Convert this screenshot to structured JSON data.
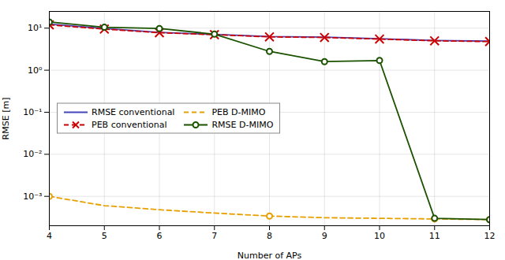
{
  "chart_data": {
    "type": "line",
    "xlabel": "Number of APs",
    "ylabel": "RMSE [m]",
    "x": [
      4,
      5,
      6,
      7,
      8,
      9,
      10,
      11,
      12
    ],
    "xlim": [
      4,
      12
    ],
    "xticks": [
      4,
      5,
      6,
      7,
      8,
      9,
      10,
      11,
      12
    ],
    "ylim": [
      0.0002,
      25
    ],
    "yticks": [
      {
        "value": 0.001,
        "label": "10⁻³"
      },
      {
        "value": 0.01,
        "label": "10⁻²"
      },
      {
        "value": 0.1,
        "label": "10⁻¹"
      },
      {
        "value": 1,
        "label": "10⁰"
      },
      {
        "value": 10,
        "label": "10¹"
      }
    ],
    "log": "y",
    "grid": true,
    "legend": "center left",
    "series": [
      {
        "name": "RMSE conventional",
        "color": "#4444bb",
        "line_style": "solid",
        "values": [
          12.5,
          9.8,
          7.9,
          7.1,
          6.3,
          6.1,
          5.6,
          5.1,
          4.9
        ]
      },
      {
        "name": "PEB conventional",
        "color": "#cc0000",
        "line_style": "dashed",
        "marker": "x",
        "values": [
          12.0,
          9.5,
          7.8,
          7.0,
          6.2,
          6.0,
          5.5,
          5.0,
          4.8
        ]
      },
      {
        "name": "PEB D-MIMO",
        "color": "#e8a000",
        "line_style": "dashed",
        "values": [
          0.001,
          0.0006,
          0.00048,
          0.0004,
          0.00034,
          0.00031,
          0.0003,
          0.00029,
          0.00028
        ]
      },
      {
        "type": "scatter",
        "color": "#e8a000",
        "marker": "circle",
        "values": [
          0.001,
          null,
          null,
          null,
          0.00034,
          null,
          null,
          0.00029,
          0.00028
        ]
      },
      {
        "name": "RMSE D-MIMO",
        "color": "#1a5200",
        "line_style": "solid",
        "marker": "circle",
        "values": [
          14.0,
          10.5,
          9.8,
          7.2,
          2.8,
          1.6,
          1.7,
          0.0003,
          0.00028
        ]
      }
    ]
  }
}
